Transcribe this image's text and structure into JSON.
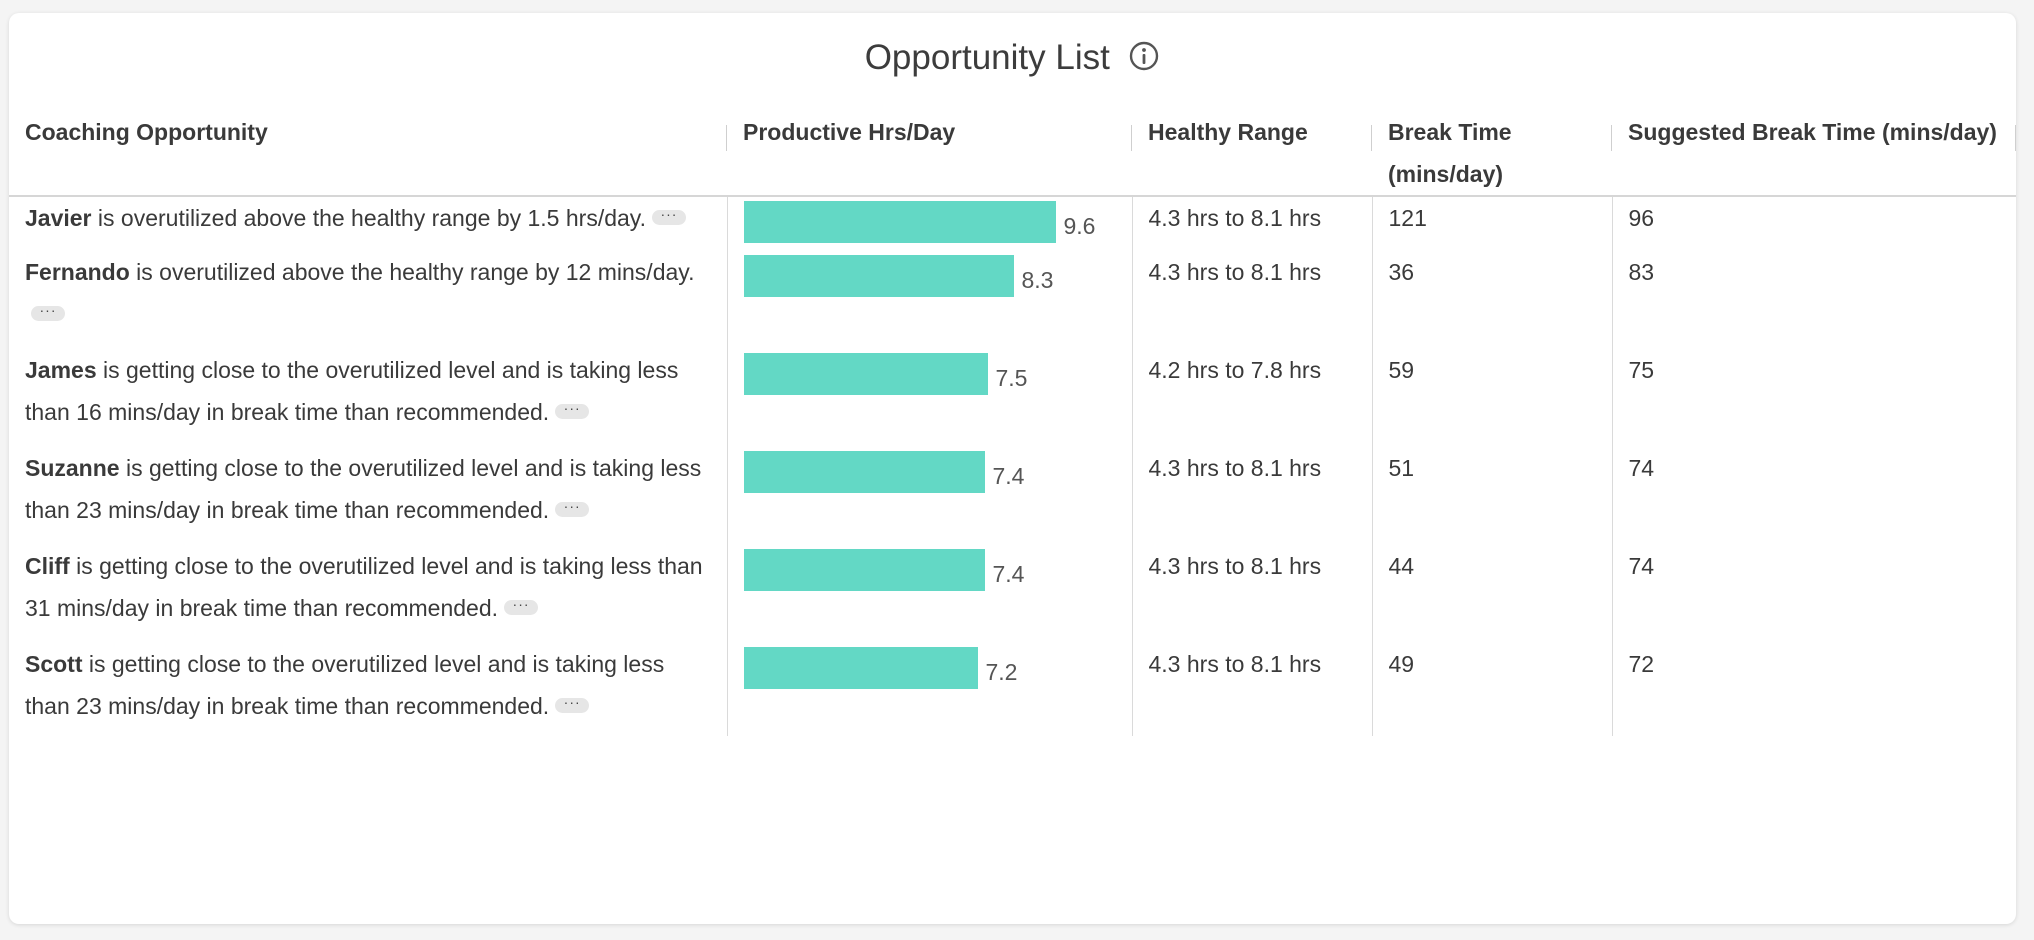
{
  "header": {
    "title": "Opportunity List",
    "info_icon": "info-circle-icon"
  },
  "columns": [
    "Coaching Opportunity",
    "Productive Hrs/Day",
    "Healthy Range",
    "Break Time (mins/day)",
    "Suggested Break Time (mins/day)"
  ],
  "colors": {
    "bar": "#63d8c5",
    "more_button_bg": "#e6e6e6"
  },
  "more_label": "···",
  "bar_max": 9.6,
  "rows": [
    {
      "name": "Javier",
      "text": " is overutilized above the healthy range by 1.5 hrs/day.",
      "productive": 9.6,
      "productive_label": "9.6",
      "range": "4.3 hrs to 8.1 hrs",
      "break": "121",
      "suggested": "96"
    },
    {
      "name": "Fernando",
      "text": " is overutilized above the healthy range by 12 mins/day.",
      "productive": 8.3,
      "productive_label": "8.3",
      "range": "4.3 hrs to 8.1 hrs",
      "break": "36",
      "suggested": "83"
    },
    {
      "name": "James",
      "text": " is getting close to the overutilized level and is taking less than 16 mins/day in break time than recommended.",
      "productive": 7.5,
      "productive_label": "7.5",
      "range": "4.2 hrs to 7.8 hrs",
      "break": "59",
      "suggested": "75"
    },
    {
      "name": "Suzanne",
      "text": " is getting close to the overutilized level and is taking less than 23 mins/day in break time than recommended.",
      "productive": 7.4,
      "productive_label": "7.4",
      "range": "4.3 hrs to 8.1 hrs",
      "break": "51",
      "suggested": "74"
    },
    {
      "name": "Cliff",
      "text": " is getting close to the overutilized level and is taking less than 31 mins/day in break time than recommended.",
      "productive": 7.4,
      "productive_label": "7.4",
      "range": "4.3 hrs to 8.1 hrs",
      "break": "44",
      "suggested": "74"
    },
    {
      "name": "Scott",
      "text": " is getting close to the overutilized level and is taking less than 23 mins/day in break time than recommended.",
      "productive": 7.2,
      "productive_label": "7.2",
      "range": "4.3 hrs to 8.1 hrs",
      "break": "49",
      "suggested": "72"
    }
  ]
}
